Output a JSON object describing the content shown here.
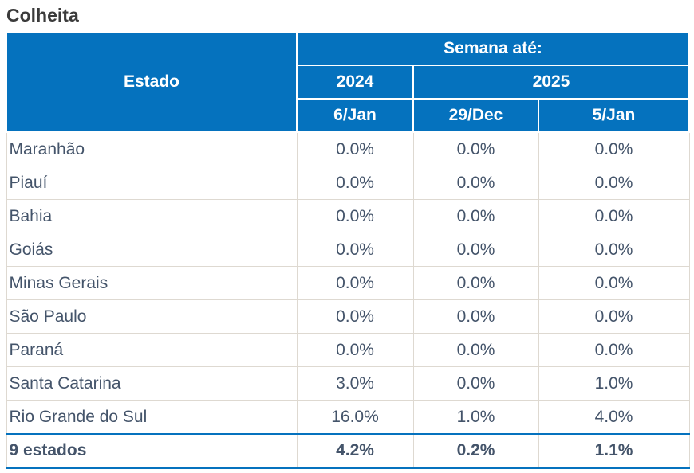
{
  "title": "Colheita",
  "table": {
    "header": {
      "estado": "Estado",
      "semana": "Semana até:",
      "year_2024": "2024",
      "year_2025": "2025",
      "date_2024": "6/Jan",
      "date_2025_a": "29/Dec",
      "date_2025_b": "5/Jan"
    },
    "rows": [
      {
        "estado": "Maranhão",
        "v1": "0.0%",
        "v2": "0.0%",
        "v3": "0.0%"
      },
      {
        "estado": "Piauí",
        "v1": "0.0%",
        "v2": "0.0%",
        "v3": "0.0%"
      },
      {
        "estado": "Bahia",
        "v1": "0.0%",
        "v2": "0.0%",
        "v3": "0.0%"
      },
      {
        "estado": "Goiás",
        "v1": "0.0%",
        "v2": "0.0%",
        "v3": "0.0%"
      },
      {
        "estado": "Minas Gerais",
        "v1": "0.0%",
        "v2": "0.0%",
        "v3": "0.0%"
      },
      {
        "estado": "São Paulo",
        "v1": "0.0%",
        "v2": "0.0%",
        "v3": "0.0%"
      },
      {
        "estado": "Paraná",
        "v1": "0.0%",
        "v2": "0.0%",
        "v3": "0.0%"
      },
      {
        "estado": "Santa Catarina",
        "v1": "3.0%",
        "v2": "0.0%",
        "v3": "1.0%"
      },
      {
        "estado": "Rio Grande do Sul",
        "v1": "16.0%",
        "v2": "1.0%",
        "v3": "4.0%"
      }
    ],
    "total": {
      "estado": "9 estados",
      "v1": "4.2%",
      "v2": "0.2%",
      "v3": "1.1%"
    }
  },
  "colors": {
    "header_blue": "#0572BE",
    "body_text": "#44546A",
    "title_text": "#3B3B3B",
    "grid_border": "#DED9D1",
    "header_text": "#FFFFFF"
  },
  "chart_data": {
    "type": "table",
    "title": "Colheita",
    "column_group_label": "Semana até:",
    "columns": [
      "Estado",
      "2024 — 6/Jan",
      "2025 — 29/Dec",
      "2025 — 5/Jan"
    ],
    "unit": "%",
    "categories": [
      "Maranhão",
      "Piauí",
      "Bahia",
      "Goiás",
      "Minas Gerais",
      "São Paulo",
      "Paraná",
      "Santa Catarina",
      "Rio Grande do Sul"
    ],
    "series": [
      {
        "name": "2024 6/Jan",
        "values": [
          0.0,
          0.0,
          0.0,
          0.0,
          0.0,
          0.0,
          0.0,
          3.0,
          16.0
        ],
        "total": 4.2
      },
      {
        "name": "2025 29/Dec",
        "values": [
          0.0,
          0.0,
          0.0,
          0.0,
          0.0,
          0.0,
          0.0,
          0.0,
          1.0
        ],
        "total": 0.2
      },
      {
        "name": "2025 5/Jan",
        "values": [
          0.0,
          0.0,
          0.0,
          0.0,
          0.0,
          0.0,
          0.0,
          1.0,
          4.0
        ],
        "total": 1.1
      }
    ],
    "total_row_label": "9 estados"
  }
}
